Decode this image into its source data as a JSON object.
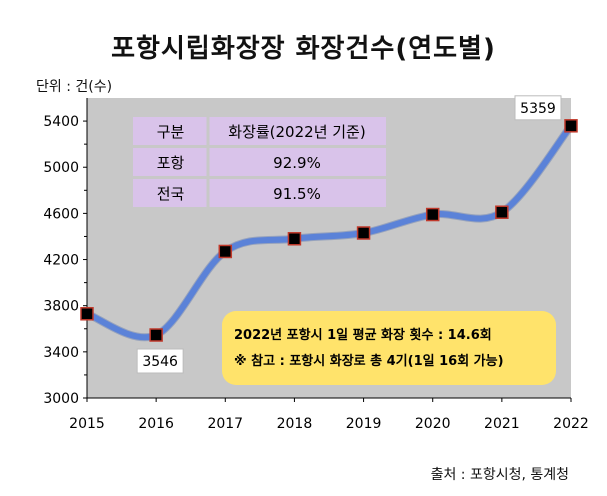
{
  "title": "포항시립화장장 화장건수(연도별)",
  "unit_label": "단위 : 건(수)",
  "source": "출처 : 포항시청, 통계청",
  "note": {
    "line1": "2022년 포항시 1일 평균 화장 횟수 : 14.6회",
    "line2": "※ 참고 : 포항시 화장로 총 4기(1일 16회 가능)"
  },
  "table": {
    "headers": [
      "구분",
      "화장률(2022년 기준)"
    ],
    "rows": [
      [
        "포항",
        "92.9%"
      ],
      [
        "전국",
        "91.5%"
      ]
    ]
  },
  "colors": {
    "plot_bg": "#c8c8c8",
    "line": "#5b82d8",
    "marker": "#000000",
    "marker_edge": "#c0392b",
    "note_bg": "#ffe36b",
    "table_bg": "#d9c3ea"
  },
  "chart_data": {
    "type": "line",
    "x": [
      "2015",
      "2016",
      "2017",
      "2018",
      "2019",
      "2020",
      "2021",
      "2022"
    ],
    "series": [
      {
        "values": [
          3730,
          3546,
          4270,
          4380,
          4430,
          4590,
          4610,
          5359
        ]
      }
    ],
    "labeled_points": {
      "2016": "3546",
      "2022": "5359"
    },
    "yticks": [
      "3000",
      "3400",
      "3800",
      "4200",
      "4600",
      "5000",
      "5400"
    ],
    "ylim": [
      3000,
      5600
    ],
    "grid": false
  }
}
